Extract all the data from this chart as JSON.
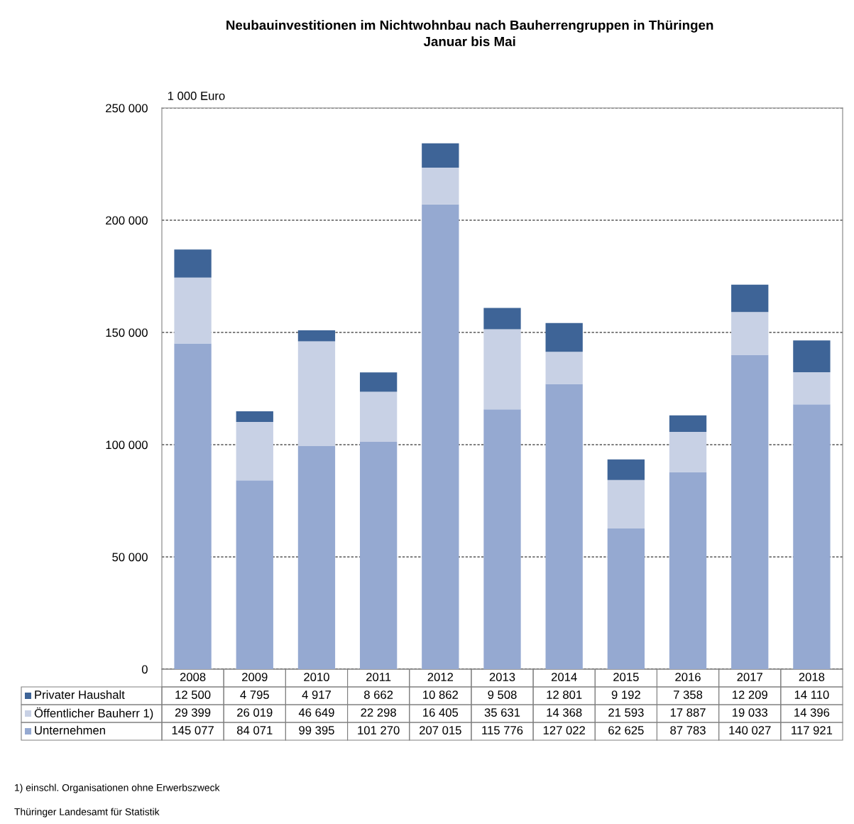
{
  "chart_data": {
    "type": "bar",
    "stacked": true,
    "title": "Neubauinvestitionen im Nichtwohnbau nach Bauherrengruppen in Thüringen",
    "subtitle": "Januar bis Mai",
    "ylabel": "1 000 Euro",
    "categories": [
      "2008",
      "2009",
      "2010",
      "2011",
      "2012",
      "2013",
      "2014",
      "2015",
      "2016",
      "2017",
      "2018"
    ],
    "series": [
      {
        "name": "Unternehmen",
        "color": "#95a9d1",
        "values": [
          145077,
          84071,
          99395,
          101270,
          207015,
          115776,
          127022,
          62625,
          87783,
          140027,
          117921
        ],
        "value_labels": [
          "145 077",
          "84 071",
          "99 395",
          "101 270",
          "207 015",
          "115 776",
          "127 022",
          "62 625",
          "87 783",
          "140 027",
          "117 921"
        ]
      },
      {
        "name": "Öffentlicher Bauherr 1)",
        "color": "#c8d1e5",
        "values": [
          29399,
          26019,
          46649,
          22298,
          16405,
          35631,
          14368,
          21593,
          17887,
          19033,
          14396
        ],
        "value_labels": [
          "29 399",
          "26 019",
          "46 649",
          "22 298",
          "16 405",
          "35 631",
          "14 368",
          "21 593",
          "17 887",
          "19 033",
          "14 396"
        ]
      },
      {
        "name": "Privater Haushalt",
        "color": "#3e6497",
        "values": [
          12500,
          4795,
          4917,
          8662,
          10862,
          9508,
          12801,
          9192,
          7358,
          12209,
          14110
        ],
        "value_labels": [
          "12 500",
          "4 795",
          "4 917",
          "8 662",
          "10 862",
          "9 508",
          "12 801",
          "9 192",
          "7 358",
          "12 209",
          "14 110"
        ]
      }
    ],
    "ylim": [
      0,
      250000
    ],
    "yticks": [
      0,
      {
        "value": 50000,
        "label": "50 000"
      },
      {
        "value": 100000,
        "label": "100 000"
      },
      {
        "value": 150000,
        "label": "150 000"
      },
      {
        "value": 200000,
        "label": "200 000"
      },
      {
        "value": 250000,
        "label": "250 000"
      }
    ],
    "grid": "y",
    "legend": "bottom",
    "annotations": [
      "1) einschl. Organisationen ohne Erwerbszweck",
      "Thüringer Landesamt für Statistik"
    ]
  }
}
